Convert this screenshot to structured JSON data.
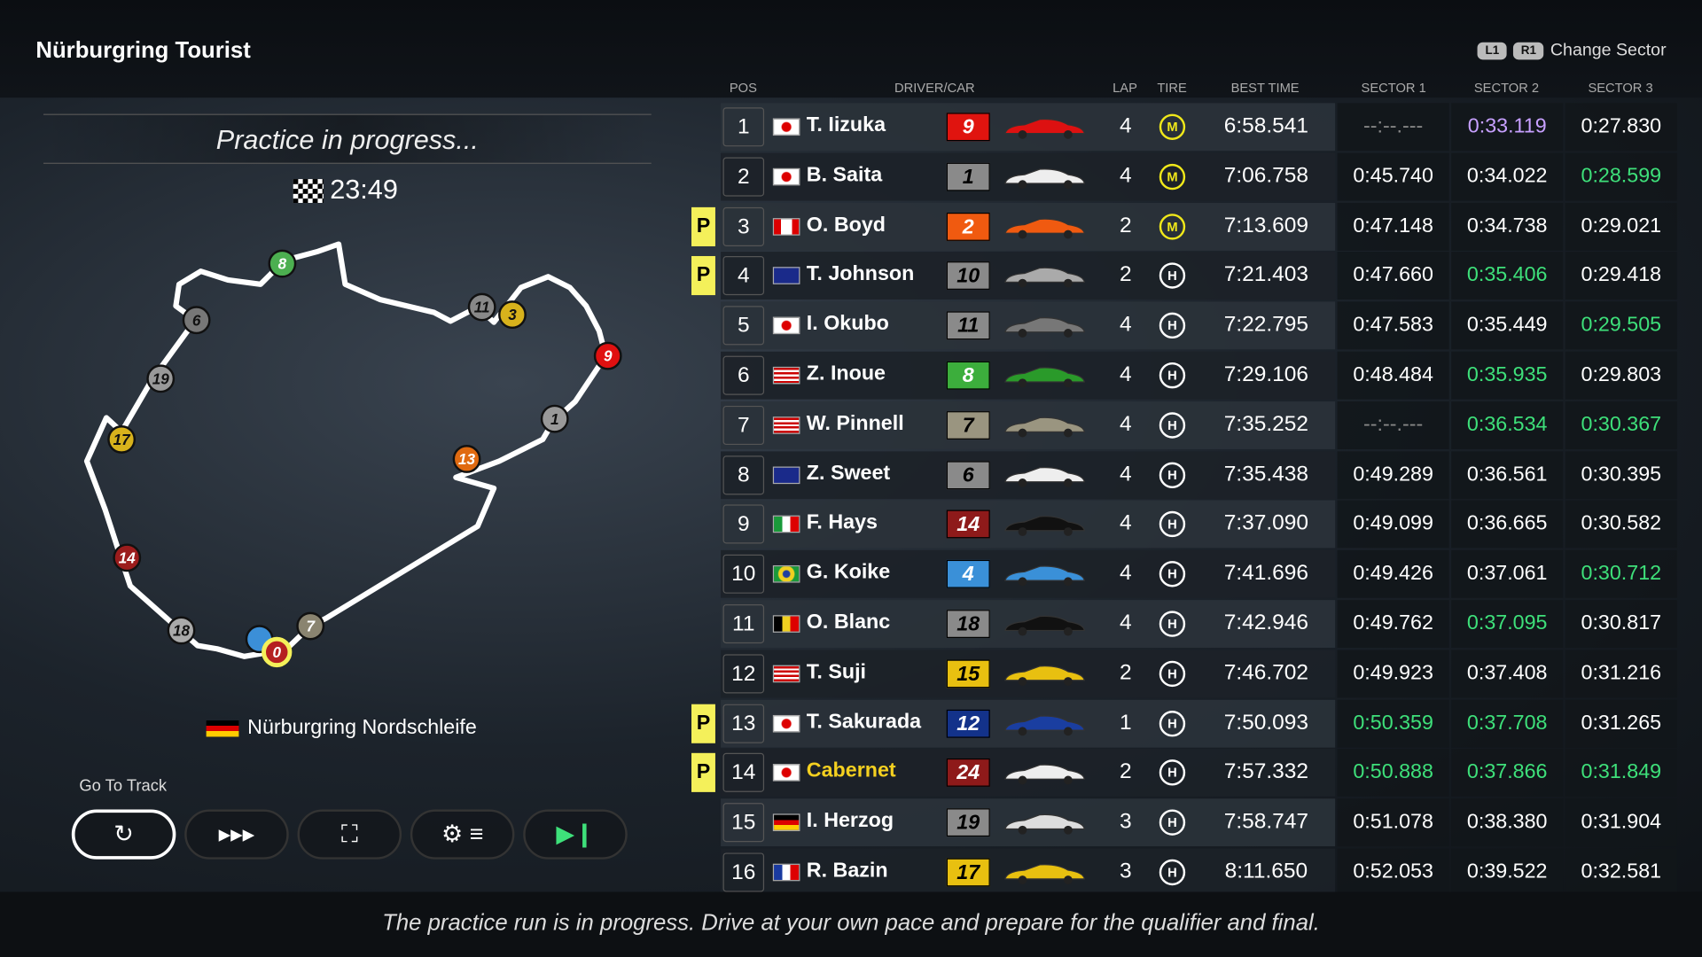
{
  "header": {
    "title": "Nürburgring Tourist",
    "l1": "L1",
    "r1": "R1",
    "change_sector": "Change Sector"
  },
  "session": {
    "status": "Practice in progress...",
    "time_remaining": "23:49"
  },
  "track": {
    "name": "Nürburgring Nordschleife",
    "country_flag": "de"
  },
  "map_markers": [
    {
      "label": "8",
      "color": "#4caf50"
    },
    {
      "label": "6",
      "color": "#777"
    },
    {
      "label": "19",
      "color": "#999"
    },
    {
      "label": "17",
      "color": "#d8b21c"
    },
    {
      "label": "14",
      "color": "#9b1c1c"
    },
    {
      "label": "18",
      "color": "#aaa"
    },
    {
      "label": "",
      "color": "#3b8fd8"
    },
    {
      "label": "0",
      "color": "#b52020"
    },
    {
      "label": "7",
      "color": "#8a8470"
    },
    {
      "label": "13",
      "color": "#e06a10"
    },
    {
      "label": "1",
      "color": "#999"
    },
    {
      "label": "9",
      "color": "#e01010"
    },
    {
      "label": "11",
      "color": "#888"
    },
    {
      "label": "3",
      "color": "#d8b21c"
    }
  ],
  "controls": {
    "go_to_track_label": "Go To Track",
    "buttons": [
      {
        "icon": "restart-icon",
        "glyph": "↻"
      },
      {
        "icon": "fast-forward-icon",
        "glyph": "▸▸▸"
      },
      {
        "icon": "binoculars-icon",
        "glyph": "⛶"
      },
      {
        "icon": "settings-icon",
        "glyph": "⚙ ≡"
      },
      {
        "icon": "skip-icon",
        "glyph": "▶❙"
      }
    ]
  },
  "columns": {
    "pos": "POS",
    "driver": "DRIVER/CAR",
    "lap": "LAP",
    "tire": "TIRE",
    "best": "BEST TIME",
    "s1": "SECTOR 1",
    "s2": "SECTOR 2",
    "s3": "SECTOR 3"
  },
  "colors": {
    "purple": "#c7a0ff",
    "green": "#3ee07a",
    "white": "#ffffff",
    "tire_m": "#f0e81a"
  },
  "rows": [
    {
      "pos": "1",
      "pit": "",
      "flag": "jp",
      "name": "T. Iizuka",
      "num": "9",
      "numColor": "#e0140f",
      "car": "#d11",
      "lap": "4",
      "tire": "M",
      "best": "6:58.541",
      "s": [
        "--:--.---",
        "0:33.119",
        "0:27.830"
      ],
      "sc": [
        "dim",
        "purple",
        "white"
      ]
    },
    {
      "pos": "2",
      "pit": "",
      "flag": "jp",
      "name": "B. Saita",
      "num": "1",
      "numColor": "#8a8a8a",
      "car": "#eee",
      "lap": "4",
      "tire": "M",
      "best": "7:06.758",
      "s": [
        "0:45.740",
        "0:34.022",
        "0:28.599"
      ],
      "sc": [
        "white",
        "white",
        "green"
      ]
    },
    {
      "pos": "3",
      "pit": "P",
      "flag": "ca",
      "name": "O. Boyd",
      "num": "2",
      "numColor": "#f05a10",
      "car": "#f05a10",
      "lap": "2",
      "tire": "M",
      "best": "7:13.609",
      "s": [
        "0:47.148",
        "0:34.738",
        "0:29.021"
      ],
      "sc": [
        "white",
        "white",
        "white"
      ]
    },
    {
      "pos": "4",
      "pit": "P",
      "flag": "au",
      "name": "T. Johnson",
      "num": "10",
      "numColor": "#8a8a8a",
      "car": "#aaa",
      "lap": "2",
      "tire": "H",
      "best": "7:21.403",
      "s": [
        "0:47.660",
        "0:35.406",
        "0:29.418"
      ],
      "sc": [
        "white",
        "green",
        "white"
      ]
    },
    {
      "pos": "5",
      "pit": "",
      "flag": "jp",
      "name": "I. Okubo",
      "num": "11",
      "numColor": "#8a8a8a",
      "car": "#777",
      "lap": "4",
      "tire": "H",
      "best": "7:22.795",
      "s": [
        "0:47.583",
        "0:35.449",
        "0:29.505"
      ],
      "sc": [
        "white",
        "white",
        "green"
      ]
    },
    {
      "pos": "6",
      "pit": "",
      "flag": "us",
      "name": "Z. Inoue",
      "num": "8",
      "numColor": "#3cae3c",
      "car": "#2a9a2a",
      "lap": "4",
      "tire": "H",
      "best": "7:29.106",
      "s": [
        "0:48.484",
        "0:35.935",
        "0:29.803"
      ],
      "sc": [
        "white",
        "green",
        "white"
      ]
    },
    {
      "pos": "7",
      "pit": "",
      "flag": "us",
      "name": "W. Pinnell",
      "num": "7",
      "numColor": "#9a9580",
      "car": "#9a9580",
      "lap": "4",
      "tire": "H",
      "best": "7:35.252",
      "s": [
        "--:--.---",
        "0:36.534",
        "0:30.367"
      ],
      "sc": [
        "dim",
        "green",
        "green"
      ]
    },
    {
      "pos": "8",
      "pit": "",
      "flag": "uk",
      "name": "Z. Sweet",
      "num": "6",
      "numColor": "#8a8a8a",
      "car": "#eee",
      "lap": "4",
      "tire": "H",
      "best": "7:35.438",
      "s": [
        "0:49.289",
        "0:36.561",
        "0:30.395"
      ],
      "sc": [
        "white",
        "white",
        "white"
      ]
    },
    {
      "pos": "9",
      "pit": "",
      "flag": "it",
      "name": "F. Hays",
      "num": "14",
      "numColor": "#8e1a1a",
      "car": "#111",
      "lap": "4",
      "tire": "H",
      "best": "7:37.090",
      "s": [
        "0:49.099",
        "0:36.665",
        "0:30.582"
      ],
      "sc": [
        "white",
        "white",
        "white"
      ]
    },
    {
      "pos": "10",
      "pit": "",
      "flag": "br",
      "name": "G. Koike",
      "num": "4",
      "numColor": "#3a90d8",
      "car": "#3a90d8",
      "lap": "4",
      "tire": "H",
      "best": "7:41.696",
      "s": [
        "0:49.426",
        "0:37.061",
        "0:30.712"
      ],
      "sc": [
        "white",
        "white",
        "green"
      ]
    },
    {
      "pos": "11",
      "pit": "",
      "flag": "be",
      "name": "O. Blanc",
      "num": "18",
      "numColor": "#8a8a8a",
      "car": "#111",
      "lap": "4",
      "tire": "H",
      "best": "7:42.946",
      "s": [
        "0:49.762",
        "0:37.095",
        "0:30.817"
      ],
      "sc": [
        "white",
        "green",
        "white"
      ]
    },
    {
      "pos": "12",
      "pit": "",
      "flag": "my",
      "name": "T. Suji",
      "num": "15",
      "numColor": "#e8c010",
      "car": "#e8c010",
      "lap": "2",
      "tire": "H",
      "best": "7:46.702",
      "s": [
        "0:49.923",
        "0:37.408",
        "0:31.216"
      ],
      "sc": [
        "white",
        "white",
        "white"
      ]
    },
    {
      "pos": "13",
      "pit": "P",
      "flag": "jp",
      "name": "T. Sakurada",
      "num": "12",
      "numColor": "#13328a",
      "car": "#1a3ea0",
      "lap": "1",
      "tire": "H",
      "best": "7:50.093",
      "s": [
        "0:50.359",
        "0:37.708",
        "0:31.265"
      ],
      "sc": [
        "green",
        "green",
        "white"
      ]
    },
    {
      "pos": "14",
      "pit": "P",
      "flag": "jp",
      "name": "Cabernet",
      "nameColor": "#f4d020",
      "num": "24",
      "numColor": "#8e1a1a",
      "car": "#eee",
      "lap": "2",
      "tire": "H",
      "best": "7:57.332",
      "s": [
        "0:50.888",
        "0:37.866",
        "0:31.849"
      ],
      "sc": [
        "green",
        "green",
        "green"
      ]
    },
    {
      "pos": "15",
      "pit": "",
      "flag": "de",
      "name": "I. Herzog",
      "num": "19",
      "numColor": "#8a8a8a",
      "car": "#ddd",
      "lap": "3",
      "tire": "H",
      "best": "7:58.747",
      "s": [
        "0:51.078",
        "0:38.380",
        "0:31.904"
      ],
      "sc": [
        "white",
        "white",
        "white"
      ]
    },
    {
      "pos": "16",
      "pit": "",
      "flag": "fr",
      "name": "R. Bazin",
      "num": "17",
      "numColor": "#e8c010",
      "car": "#e8c010",
      "lap": "3",
      "tire": "H",
      "best": "8:11.650",
      "s": [
        "0:52.053",
        "0:39.522",
        "0:32.581"
      ],
      "sc": [
        "white",
        "white",
        "white"
      ]
    }
  ],
  "footer": {
    "message": "The practice run is in progress. Drive at your own pace and prepare for the qualifier and final."
  }
}
